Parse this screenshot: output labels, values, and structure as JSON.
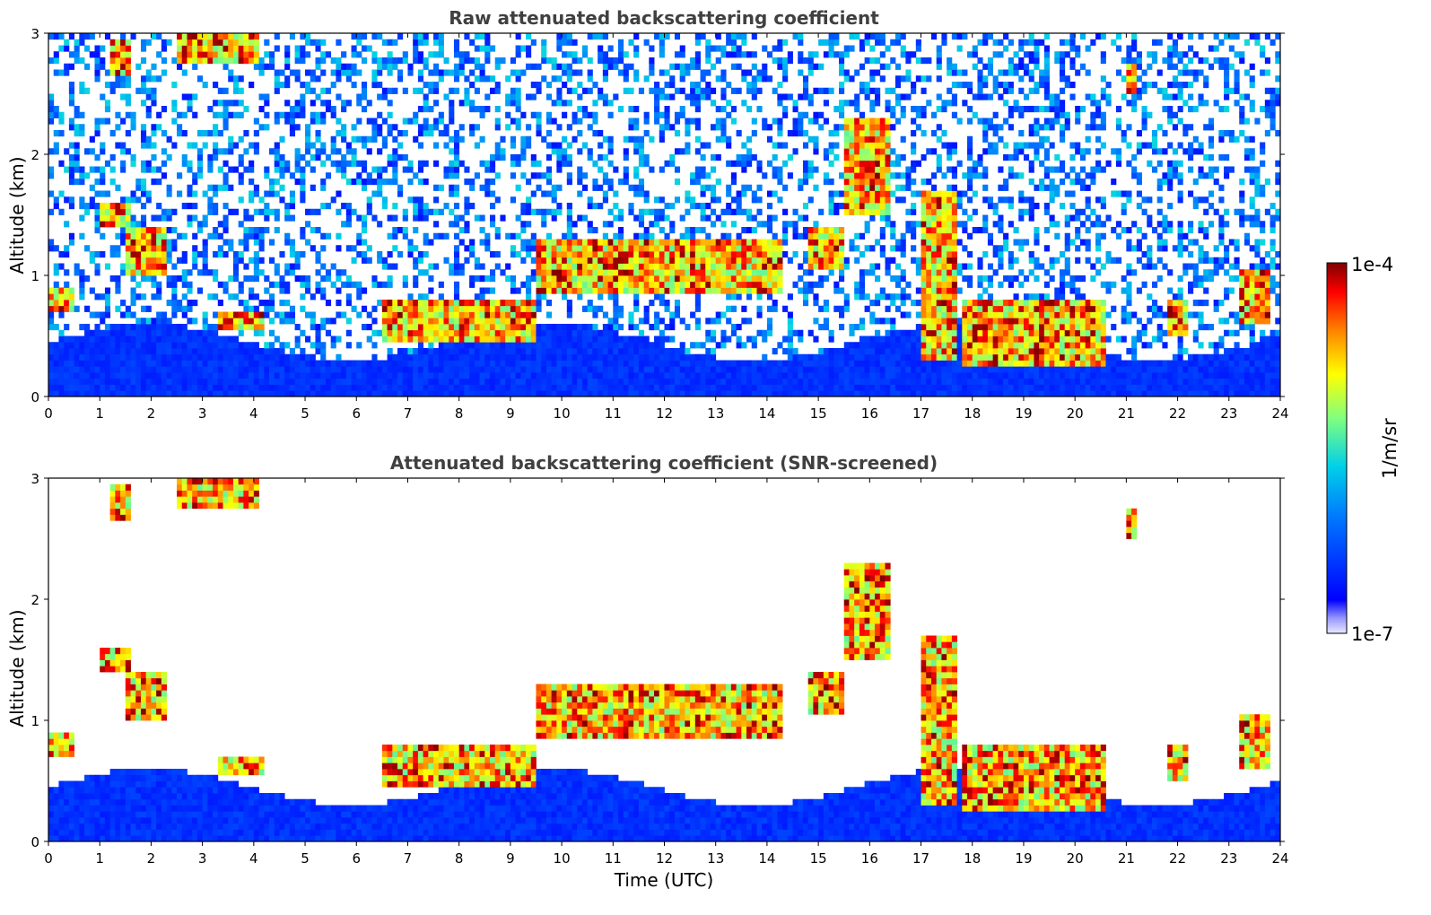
{
  "chart_data": [
    {
      "type": "heatmap",
      "title": "Raw attenuated backscattering coefficient",
      "xlabel": "",
      "ylabel": "Altitude (km)",
      "xlim": [
        0,
        24
      ],
      "ylim": [
        0,
        3
      ],
      "xticks": [
        0,
        1,
        2,
        3,
        4,
        5,
        6,
        7,
        8,
        9,
        10,
        11,
        12,
        13,
        14,
        15,
        16,
        17,
        18,
        19,
        20,
        21,
        22,
        23,
        24
      ],
      "yticks": [
        0,
        1,
        2,
        3
      ],
      "screened": false,
      "cloud_layers": [
        {
          "t": [
            0.0,
            0.5
          ],
          "alt": [
            0.72,
            0.88
          ]
        },
        {
          "t": [
            1.0,
            1.6
          ],
          "alt": [
            1.4,
            1.6
          ]
        },
        {
          "t": [
            1.5,
            2.3
          ],
          "alt": [
            1.0,
            1.4
          ]
        },
        {
          "t": [
            1.2,
            1.6
          ],
          "alt": [
            2.65,
            2.95
          ]
        },
        {
          "t": [
            2.5,
            4.1
          ],
          "alt": [
            2.75,
            3.0
          ]
        },
        {
          "t": [
            3.3,
            4.2
          ],
          "alt": [
            0.55,
            0.72
          ]
        },
        {
          "t": [
            6.5,
            9.5
          ],
          "alt": [
            0.45,
            0.8
          ]
        },
        {
          "t": [
            9.5,
            14.3
          ],
          "alt": [
            0.85,
            1.3
          ]
        },
        {
          "t": [
            14.8,
            15.5
          ],
          "alt": [
            1.05,
            1.4
          ]
        },
        {
          "t": [
            15.5,
            16.4
          ],
          "alt": [
            1.5,
            2.3
          ]
        },
        {
          "t": [
            17.0,
            17.7
          ],
          "alt": [
            0.3,
            1.7
          ]
        },
        {
          "t": [
            17.8,
            20.6
          ],
          "alt": [
            0.25,
            0.8
          ]
        },
        {
          "t": [
            21.0,
            21.2
          ],
          "alt": [
            2.5,
            2.75
          ]
        },
        {
          "t": [
            21.8,
            22.2
          ],
          "alt": [
            0.5,
            0.8
          ]
        },
        {
          "t": [
            23.2,
            23.8
          ],
          "alt": [
            0.6,
            1.05
          ]
        }
      ],
      "colorbar": {
        "min_label": "1e-7",
        "max_label": "1e-4",
        "units": "1/m/sr"
      }
    },
    {
      "type": "heatmap",
      "title": "Attenuated backscattering coefficient (SNR-screened)",
      "xlabel": "Time (UTC)",
      "ylabel": "Altitude (km)",
      "xlim": [
        0,
        24
      ],
      "ylim": [
        0,
        3
      ],
      "xticks": [
        0,
        1,
        2,
        3,
        4,
        5,
        6,
        7,
        8,
        9,
        10,
        11,
        12,
        13,
        14,
        15,
        16,
        17,
        18,
        19,
        20,
        21,
        22,
        23,
        24
      ],
      "yticks": [
        0,
        1,
        2,
        3
      ],
      "screened": true,
      "colorbar": {
        "min_label": "1e-7",
        "max_label": "1e-4",
        "units": "1/m/sr"
      }
    }
  ],
  "colors": {
    "colormap": [
      "#e8e8ff",
      "#0000ff",
      "#0080ff",
      "#00e0e0",
      "#80ff80",
      "#ffff00",
      "#ff8000",
      "#ff0000",
      "#800000"
    ]
  }
}
